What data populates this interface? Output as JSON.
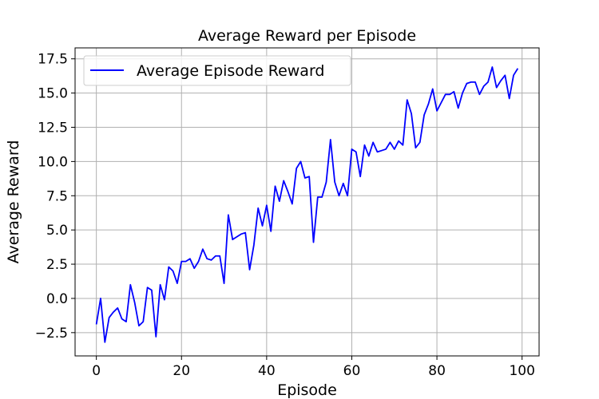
{
  "chart_data": {
    "type": "line",
    "title": "Average Reward per Episode",
    "xlabel": "Episode",
    "ylabel": "Average Reward",
    "xlim": [
      -5.0,
      104.0
    ],
    "ylim": [
      -4.2,
      18.3
    ],
    "xticks": [
      0,
      20,
      40,
      60,
      80,
      100
    ],
    "xtick_labels": [
      "0",
      "20",
      "40",
      "60",
      "80",
      "100"
    ],
    "yticks": [
      -2.5,
      0.0,
      2.5,
      5.0,
      7.5,
      10.0,
      12.5,
      15.0,
      17.5
    ],
    "ytick_labels": [
      "−2.5",
      "0.0",
      "2.5",
      "5.0",
      "7.5",
      "10.0",
      "12.5",
      "15.0",
      "17.5"
    ],
    "grid": true,
    "legend_position": "top-left",
    "series": [
      {
        "name": "Average Episode Reward",
        "color": "#0000ff",
        "x": [
          0,
          1,
          2,
          3,
          4,
          5,
          6,
          7,
          8,
          9,
          10,
          11,
          12,
          13,
          14,
          15,
          16,
          17,
          18,
          19,
          20,
          21,
          22,
          23,
          24,
          25,
          26,
          27,
          28,
          29,
          30,
          31,
          32,
          33,
          34,
          35,
          36,
          37,
          38,
          39,
          40,
          41,
          42,
          43,
          44,
          45,
          46,
          47,
          48,
          49,
          50,
          51,
          52,
          53,
          54,
          55,
          56,
          57,
          58,
          59,
          60,
          61,
          62,
          63,
          64,
          65,
          66,
          67,
          68,
          69,
          70,
          71,
          72,
          73,
          74,
          75,
          76,
          77,
          78,
          79,
          80,
          81,
          82,
          83,
          84,
          85,
          86,
          87,
          88,
          89,
          90,
          91,
          92,
          93,
          94,
          95,
          96,
          97,
          98,
          99
        ],
        "y": [
          -1.9,
          0.0,
          -3.2,
          -1.4,
          -1.0,
          -0.7,
          -1.5,
          -1.7,
          1.0,
          -0.3,
          -2.0,
          -1.7,
          0.8,
          0.6,
          -2.8,
          1.0,
          -0.1,
          2.3,
          2.0,
          1.1,
          2.7,
          2.7,
          2.9,
          2.2,
          2.7,
          3.6,
          2.9,
          2.8,
          3.1,
          3.1,
          1.1,
          6.1,
          4.3,
          4.5,
          4.7,
          4.8,
          2.1,
          3.9,
          6.6,
          5.3,
          6.8,
          4.9,
          8.2,
          7.1,
          8.6,
          7.8,
          6.9,
          9.5,
          10.0,
          8.8,
          8.9,
          4.1,
          7.4,
          7.4,
          8.5,
          11.6,
          8.5,
          7.5,
          8.4,
          7.5,
          10.9,
          10.7,
          8.9,
          11.2,
          10.4,
          11.4,
          10.7,
          10.8,
          10.9,
          11.4,
          10.9,
          11.5,
          11.2,
          14.5,
          13.5,
          11.0,
          11.4,
          13.4,
          14.2,
          15.3,
          13.7,
          14.3,
          14.9,
          14.9,
          15.1,
          13.9,
          15.0,
          15.7,
          15.8,
          15.8,
          14.9,
          15.5,
          15.8,
          16.9,
          15.4,
          15.9,
          16.3,
          14.6,
          16.3,
          16.8
        ]
      }
    ]
  }
}
